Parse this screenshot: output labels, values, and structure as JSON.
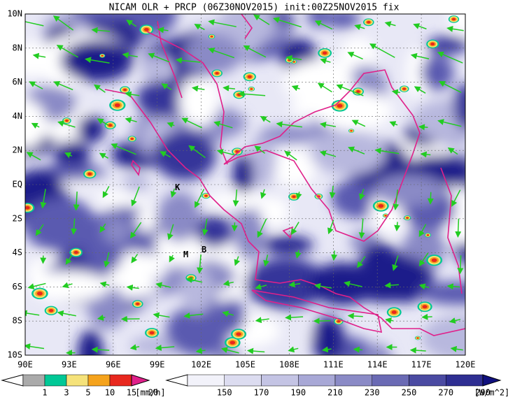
{
  "title": "NICAM OLR + PRCP (06Z30NOV2015) init:00Z25NOV2015 fix",
  "lat_labels": [
    "10N",
    "8N",
    "6N",
    "4N",
    "2N",
    "EQ",
    "2S",
    "4S",
    "6S",
    "8S",
    "10S"
  ],
  "lon_labels": [
    "90E",
    "93E",
    "96E",
    "99E",
    "102E",
    "105E",
    "108E",
    "111E",
    "114E",
    "117E",
    "120E"
  ],
  "markers": [
    "K",
    "M",
    "B"
  ],
  "precip_colorbar": {
    "labels": [
      "1",
      "3",
      "5",
      "10",
      "15",
      "20"
    ],
    "unit": "[mm/h]"
  },
  "olr_colorbar": {
    "labels": [
      "150",
      "170",
      "190",
      "210",
      "230",
      "250",
      "270",
      "290"
    ],
    "unit": "[W/m^2]"
  }
}
